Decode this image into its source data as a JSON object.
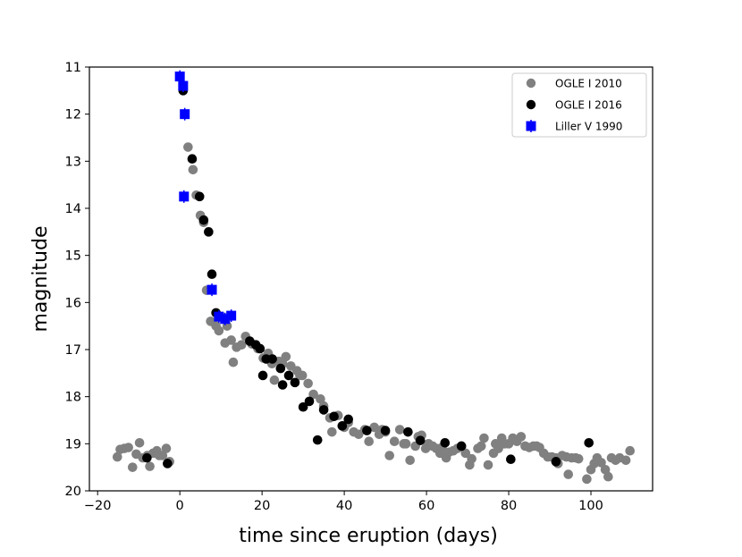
{
  "chart_data": {
    "type": "scatter",
    "title": "",
    "xlabel": "time since eruption (days)",
    "ylabel": "magnitude",
    "xlim": [
      -22,
      115
    ],
    "ylim": [
      20,
      11
    ],
    "y_inverted": true,
    "grid": false,
    "legend_position": "top-right",
    "x_ticks": [
      -20,
      0,
      20,
      40,
      60,
      80,
      100
    ],
    "x_tick_labels": [
      "−20",
      "0",
      "20",
      "40",
      "60",
      "80",
      "100"
    ],
    "y_ticks": [
      11,
      12,
      13,
      14,
      15,
      16,
      17,
      18,
      19,
      20
    ],
    "y_tick_labels": [
      "11",
      "12",
      "13",
      "14",
      "15",
      "16",
      "17",
      "18",
      "19",
      "20"
    ],
    "series": [
      {
        "name": "OGLE I 2010",
        "marker": "circle",
        "color": "#808080",
        "points": [
          [
            -15.2,
            19.28
          ],
          [
            -14.5,
            19.12
          ],
          [
            -13.5,
            19.1
          ],
          [
            -12.5,
            19.08
          ],
          [
            -11.5,
            19.5
          ],
          [
            -10.6,
            19.22
          ],
          [
            -9.8,
            18.98
          ],
          [
            -9.0,
            19.3
          ],
          [
            -7.9,
            19.25
          ],
          [
            -7.3,
            19.48
          ],
          [
            -6.5,
            19.2
          ],
          [
            -5.6,
            19.15
          ],
          [
            -5.0,
            19.25
          ],
          [
            -4.2,
            19.25
          ],
          [
            -3.3,
            19.1
          ],
          [
            -2.5,
            19.38
          ],
          [
            2.0,
            12.7
          ],
          [
            3.2,
            13.18
          ],
          [
            4.0,
            13.72
          ],
          [
            5.0,
            14.15
          ],
          [
            5.8,
            14.3
          ],
          [
            6.5,
            15.74
          ],
          [
            7.5,
            16.4
          ],
          [
            8.8,
            16.5
          ],
          [
            9.5,
            16.6
          ],
          [
            10.0,
            16.3
          ],
          [
            11.0,
            16.86
          ],
          [
            11.5,
            16.5
          ],
          [
            12.5,
            16.8
          ],
          [
            13.0,
            17.27
          ],
          [
            13.8,
            16.95
          ],
          [
            15.0,
            16.9
          ],
          [
            16.0,
            16.72
          ],
          [
            17.5,
            16.88
          ],
          [
            19.0,
            16.98
          ],
          [
            20.3,
            17.18
          ],
          [
            21.5,
            17.08
          ],
          [
            22.4,
            17.3
          ],
          [
            23.0,
            17.65
          ],
          [
            24.1,
            17.25
          ],
          [
            25.0,
            17.3
          ],
          [
            25.8,
            17.15
          ],
          [
            27.0,
            17.35
          ],
          [
            28.5,
            17.45
          ],
          [
            29.2,
            17.55
          ],
          [
            29.8,
            17.55
          ],
          [
            31.2,
            17.72
          ],
          [
            32.5,
            17.95
          ],
          [
            34.2,
            18.05
          ],
          [
            35.0,
            18.2
          ],
          [
            36.5,
            18.45
          ],
          [
            37.0,
            18.75
          ],
          [
            38.5,
            18.4
          ],
          [
            40.0,
            18.65
          ],
          [
            41.0,
            18.55
          ],
          [
            42.3,
            18.75
          ],
          [
            43.5,
            18.8
          ],
          [
            45.0,
            18.7
          ],
          [
            46.0,
            18.95
          ],
          [
            47.3,
            18.65
          ],
          [
            48.5,
            18.8
          ],
          [
            49.2,
            18.7
          ],
          [
            50.0,
            18.75
          ],
          [
            51.0,
            19.25
          ],
          [
            52.2,
            18.95
          ],
          [
            53.5,
            18.7
          ],
          [
            54.5,
            19.0
          ],
          [
            55.0,
            19.0
          ],
          [
            56.0,
            19.35
          ],
          [
            57.3,
            19.05
          ],
          [
            58.0,
            18.85
          ],
          [
            58.8,
            18.82
          ],
          [
            59.8,
            19.1
          ],
          [
            60.5,
            19.0
          ],
          [
            61.5,
            19.05
          ],
          [
            62.4,
            19.1
          ],
          [
            63.3,
            19.2
          ],
          [
            63.8,
            19.08
          ],
          [
            64.8,
            19.3
          ],
          [
            65.5,
            19.18
          ],
          [
            66.5,
            19.15
          ],
          [
            67.5,
            19.1
          ],
          [
            68.5,
            19.05
          ],
          [
            69.5,
            19.2
          ],
          [
            70.5,
            19.45
          ],
          [
            71.0,
            19.32
          ],
          [
            72.5,
            19.1
          ],
          [
            73.3,
            19.05
          ],
          [
            74.0,
            18.88
          ],
          [
            75.0,
            19.45
          ],
          [
            76.3,
            19.2
          ],
          [
            76.8,
            19.0
          ],
          [
            77.5,
            19.1
          ],
          [
            78.3,
            18.88
          ],
          [
            79.0,
            19.0
          ],
          [
            80.0,
            19.0
          ],
          [
            81.0,
            18.88
          ],
          [
            82.0,
            18.95
          ],
          [
            83.0,
            18.85
          ],
          [
            84.0,
            19.05
          ],
          [
            85.0,
            19.08
          ],
          [
            86.0,
            19.05
          ],
          [
            86.8,
            19.05
          ],
          [
            87.5,
            19.08
          ],
          [
            88.5,
            19.2
          ],
          [
            89.5,
            19.28
          ],
          [
            90.5,
            19.28
          ],
          [
            91.5,
            19.3
          ],
          [
            92.0,
            19.42
          ],
          [
            93.0,
            19.25
          ],
          [
            94.0,
            19.28
          ],
          [
            94.5,
            19.65
          ],
          [
            95.3,
            19.3
          ],
          [
            96.3,
            19.3
          ],
          [
            97.0,
            19.32
          ],
          [
            99.0,
            19.75
          ],
          [
            100.0,
            19.55
          ],
          [
            100.8,
            19.42
          ],
          [
            101.5,
            19.3
          ],
          [
            102.5,
            19.4
          ],
          [
            103.5,
            19.55
          ],
          [
            104.2,
            19.7
          ],
          [
            105.0,
            19.3
          ],
          [
            106.0,
            19.35
          ],
          [
            107.0,
            19.3
          ],
          [
            108.5,
            19.35
          ],
          [
            109.5,
            19.15
          ]
        ]
      },
      {
        "name": "OGLE I 2016",
        "marker": "circle",
        "color": "#000000",
        "points": [
          [
            -8.0,
            19.3
          ],
          [
            -3.0,
            19.42
          ],
          [
            0.8,
            11.5
          ],
          [
            3.0,
            12.95
          ],
          [
            4.8,
            13.75
          ],
          [
            5.8,
            14.25
          ],
          [
            7.0,
            14.5
          ],
          [
            7.8,
            15.4
          ],
          [
            8.8,
            16.22
          ],
          [
            17.0,
            16.82
          ],
          [
            18.5,
            16.9
          ],
          [
            19.5,
            16.98
          ],
          [
            20.2,
            17.55
          ],
          [
            21.0,
            17.2
          ],
          [
            22.5,
            17.2
          ],
          [
            24.5,
            17.4
          ],
          [
            25.0,
            17.75
          ],
          [
            26.5,
            17.55
          ],
          [
            28.0,
            17.7
          ],
          [
            30.0,
            18.22
          ],
          [
            31.5,
            18.1
          ],
          [
            33.5,
            18.92
          ],
          [
            35.0,
            18.28
          ],
          [
            37.5,
            18.42
          ],
          [
            39.5,
            18.62
          ],
          [
            41.0,
            18.48
          ],
          [
            45.5,
            18.72
          ],
          [
            50.0,
            18.72
          ],
          [
            55.5,
            18.75
          ],
          [
            58.5,
            18.93
          ],
          [
            64.5,
            18.98
          ],
          [
            68.5,
            19.05
          ],
          [
            80.5,
            19.33
          ],
          [
            91.5,
            19.38
          ],
          [
            99.5,
            18.98
          ]
        ]
      },
      {
        "name": "Liller V 1990",
        "marker": "square",
        "color": "#0000ff",
        "error_bars": true,
        "points": [
          [
            0.0,
            11.2
          ],
          [
            0.8,
            11.4
          ],
          [
            1.2,
            12.0
          ],
          [
            1.0,
            13.75
          ],
          [
            7.8,
            15.73
          ],
          [
            9.5,
            16.3
          ],
          [
            11.0,
            16.35
          ],
          [
            12.5,
            16.28
          ]
        ]
      }
    ]
  }
}
